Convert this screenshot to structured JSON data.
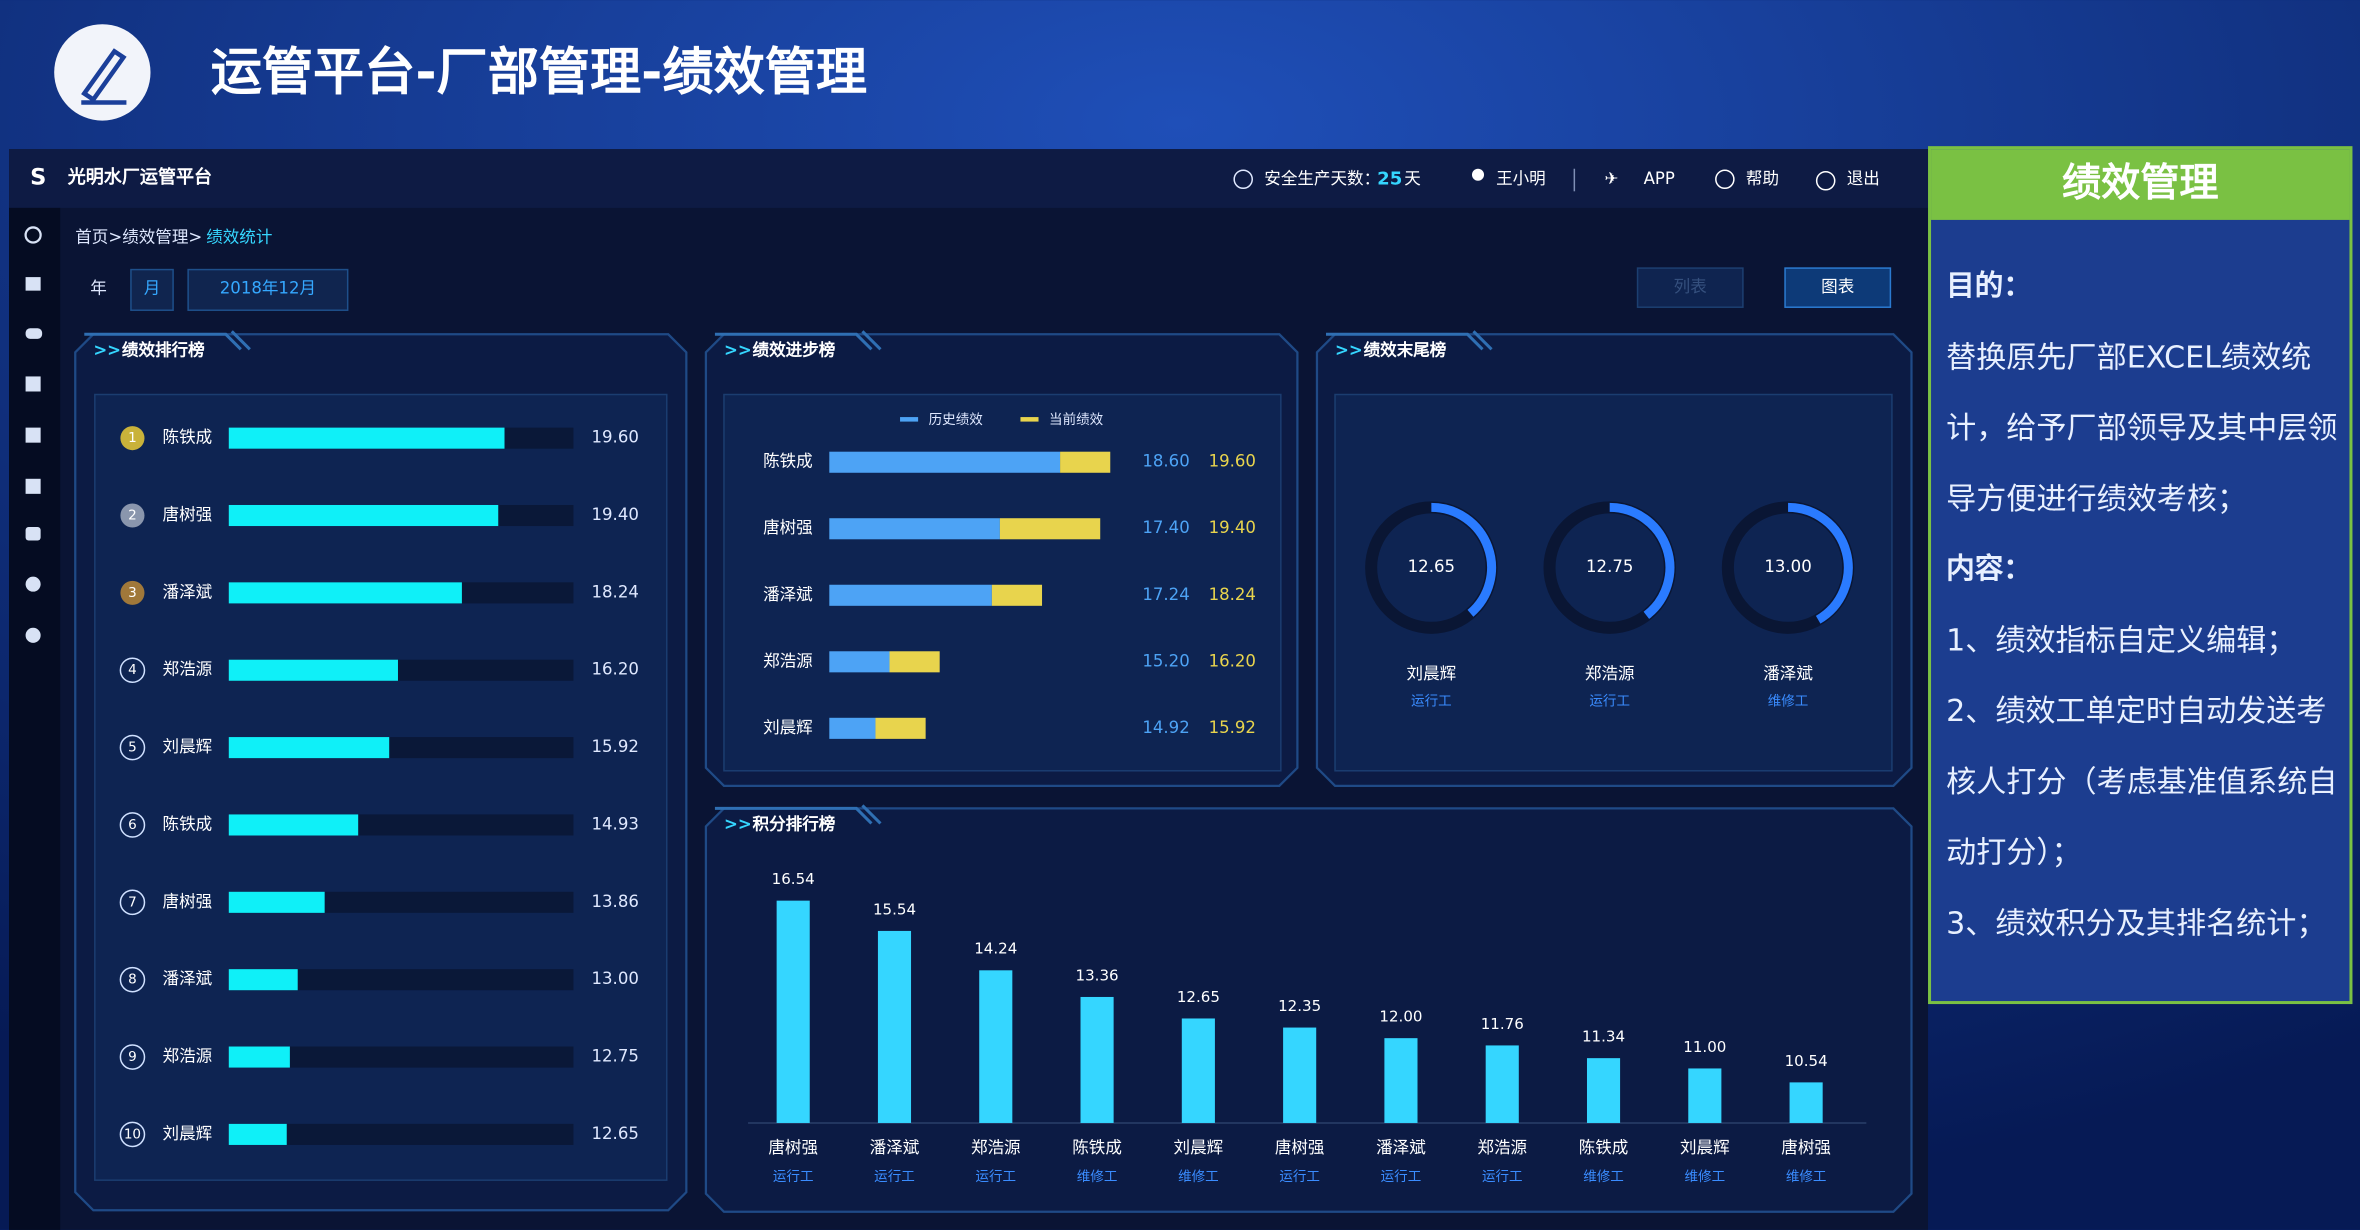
{
  "header": {
    "title": "运管平台-厂部管理-绩效管理"
  },
  "app": {
    "name": "光明水厂运管平台",
    "safety_label": "安全生产天数：",
    "safety_days": "25",
    "safety_unit": "天",
    "user": "王小明",
    "app_link": "APP",
    "help": "帮助",
    "logout": "退出",
    "breadcrumb": "首页>绩效管理>",
    "breadcrumb_current": "绩效统计",
    "filter_year": "年",
    "filter_month": "月",
    "date": "2018年12月",
    "button_list": "列表",
    "button_chart": "图表"
  },
  "ranking": {
    "title": "绩效排行榜",
    "ranks": [
      "1",
      "2",
      "3",
      "4",
      "5",
      "6",
      "7",
      "8",
      "9",
      "10"
    ],
    "categories": [
      "陈铁成",
      "唐树强",
      "潘泽斌",
      "郑浩源",
      "刘晨辉",
      "陈铁成",
      "唐树强",
      "潘泽斌",
      "郑浩源",
      "刘晨辉"
    ],
    "values": [
      19.6,
      19.4,
      18.24,
      16.2,
      15.92,
      14.93,
      13.86,
      13.0,
      12.75,
      12.65
    ],
    "value_labels": [
      "19.60",
      "19.40",
      "18.24",
      "16.20",
      "15.92",
      "14.93",
      "13.86",
      "13.00",
      "12.75",
      "12.65"
    ],
    "xlim": [
      10.8,
      21.8
    ],
    "color": "#0ff0f8"
  },
  "progress": {
    "title": "绩效进步榜",
    "categories": [
      "陈铁成",
      "唐树强",
      "潘泽斌",
      "郑浩源",
      "刘晨辉"
    ],
    "series": [
      {
        "name": "历史绩效",
        "color": "#4da3f5",
        "values": [
          18.6,
          17.4,
          17.24,
          15.2,
          14.92
        ],
        "value_labels": [
          "18.60",
          "17.40",
          "17.24",
          "15.20",
          "14.92"
        ]
      },
      {
        "name": "当前绩效",
        "color": "#e8d44d",
        "values": [
          19.6,
          19.4,
          18.24,
          16.2,
          15.92
        ],
        "value_labels": [
          "19.60",
          "19.40",
          "18.24",
          "16.20",
          "15.92"
        ]
      }
    ],
    "xlim": [
      14,
      20
    ]
  },
  "tail": {
    "title": "绩效末尾榜",
    "categories": [
      "刘晨辉",
      "郑浩源",
      "潘泽斌"
    ],
    "roles": [
      "运行工",
      "运行工",
      "维修工"
    ],
    "values": [
      12.65,
      12.75,
      13.0
    ],
    "value_labels": [
      "12.65",
      "12.75",
      "13.00"
    ],
    "lim": [
      8,
      20
    ],
    "color": "#2a7bff"
  },
  "score": {
    "title": "积分排行榜",
    "categories": [
      "唐树强",
      "潘泽斌",
      "郑浩源",
      "陈铁成",
      "刘晨辉",
      "唐树强",
      "潘泽斌",
      "郑浩源",
      "陈铁成",
      "刘晨辉",
      "唐树强"
    ],
    "roles": [
      "运行工",
      "运行工",
      "运行工",
      "维修工",
      "维修工",
      "运行工",
      "运行工",
      "运行工",
      "维修工",
      "维修工",
      "维修工"
    ],
    "values": [
      16.54,
      15.54,
      14.24,
      13.36,
      12.65,
      12.35,
      12.0,
      11.76,
      11.34,
      11.0,
      10.54
    ],
    "value_labels": [
      "16.54",
      "15.54",
      "14.24",
      "13.36",
      "12.65",
      "12.35",
      "12.00",
      "11.76",
      "11.34",
      "11.00",
      "10.54"
    ],
    "ylim": [
      9.2,
      17.2
    ],
    "color": "#35d6ff"
  },
  "notes": {
    "title": "绩效管理",
    "purpose_heading": "目的：",
    "purpose": "替换原先厂部EXCEL绩效统计，给予厂部领导及其中层领导方便进行绩效考核；",
    "content_heading": "内容：",
    "items": [
      "1、绩效指标自定义编辑；",
      "2、绩效工单定时自动发送考核人打分（考虑基准值系统自动打分）；",
      "3、绩效积分及其排名统计；"
    ]
  }
}
